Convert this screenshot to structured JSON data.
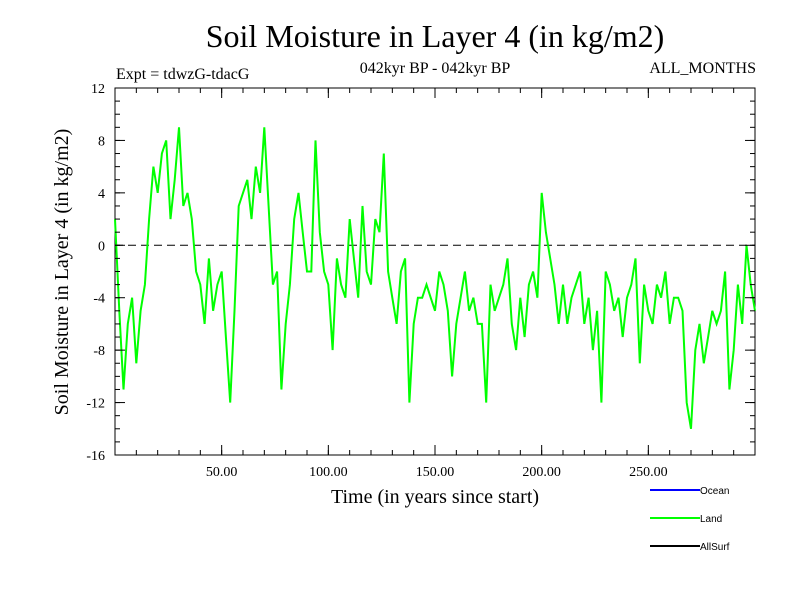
{
  "chart_data": {
    "type": "line",
    "title": "Soil Moisture in Layer 4 (in kg/m2)",
    "experiment": "Expt = tdwzG-tdacG",
    "period": "042kyr BP - 042kyr BP",
    "months": "ALL_MONTHS",
    "xlabel": "Time (in years since start)",
    "ylabel": "Soil Moisture in Layer 4 (in kg/m2)",
    "xlim": [
      0,
      300
    ],
    "ylim": [
      -16,
      12
    ],
    "x_ticks": [
      {
        "value": 50,
        "label": "50.00"
      },
      {
        "value": 100,
        "label": "100.00"
      },
      {
        "value": 150,
        "label": "150.00"
      },
      {
        "value": 200,
        "label": "200.00"
      },
      {
        "value": 250,
        "label": "250.00"
      }
    ],
    "y_ticks": [
      {
        "value": 12,
        "label": "12"
      },
      {
        "value": 8,
        "label": "8"
      },
      {
        "value": 4,
        "label": "4"
      },
      {
        "value": 0,
        "label": "0"
      },
      {
        "value": -4,
        "label": "-4"
      },
      {
        "value": -8,
        "label": "-8"
      },
      {
        "value": -12,
        "label": "-12"
      },
      {
        "value": -16,
        "label": "-16"
      }
    ],
    "zero_line": true,
    "legend": [
      {
        "name": "Ocean",
        "color": "#0000ff"
      },
      {
        "name": "Land",
        "color": "#00ff00"
      },
      {
        "name": "AllSurf",
        "color": "#000000"
      }
    ],
    "series": [
      {
        "name": "Land",
        "color": "#00ff00",
        "x": [
          0,
          2,
          4,
          6,
          8,
          10,
          12,
          14,
          16,
          18,
          20,
          22,
          24,
          26,
          28,
          30,
          32,
          34,
          36,
          38,
          40,
          42,
          44,
          46,
          48,
          50,
          52,
          54,
          56,
          58,
          60,
          62,
          64,
          66,
          68,
          70,
          72,
          74,
          76,
          78,
          80,
          82,
          84,
          86,
          88,
          90,
          92,
          94,
          96,
          98,
          100,
          102,
          104,
          106,
          108,
          110,
          112,
          114,
          116,
          118,
          120,
          122,
          124,
          126,
          128,
          130,
          132,
          134,
          136,
          138,
          140,
          142,
          144,
          146,
          148,
          150,
          152,
          154,
          156,
          158,
          160,
          162,
          164,
          166,
          168,
          170,
          172,
          174,
          176,
          178,
          180,
          182,
          184,
          186,
          188,
          190,
          192,
          194,
          196,
          198,
          200,
          202,
          204,
          206,
          208,
          210,
          212,
          214,
          216,
          218,
          220,
          222,
          224,
          226,
          228,
          230,
          232,
          234,
          236,
          238,
          240,
          242,
          244,
          246,
          248,
          250,
          252,
          254,
          256,
          258,
          260,
          262,
          264,
          266,
          268,
          270,
          272,
          274,
          276,
          278,
          280,
          282,
          284,
          286,
          288,
          290,
          292,
          294,
          296,
          298,
          300
        ],
        "values": [
          2,
          -5,
          -11,
          -6,
          -4,
          -9,
          -5,
          -3,
          2,
          6,
          4,
          7,
          8,
          2,
          5,
          9,
          3,
          4,
          2,
          -2,
          -3,
          -6,
          -1,
          -5,
          -3,
          -2,
          -7,
          -12,
          -5,
          3,
          4,
          5,
          2,
          6,
          4,
          9,
          3,
          -3,
          -2,
          -11,
          -6,
          -3,
          2,
          4,
          1,
          -2,
          -2,
          8,
          1,
          -2,
          -3,
          -8,
          -1,
          -3,
          -4,
          2,
          -1,
          -4,
          3,
          -2,
          -3,
          2,
          1,
          7,
          -2,
          -4,
          -6,
          -2,
          -1,
          -12,
          -6,
          -4,
          -4,
          -3,
          -4,
          -5,
          -2,
          -3,
          -5,
          -10,
          -6,
          -4,
          -2,
          -5,
          -4,
          -6,
          -6,
          -12,
          -3,
          -5,
          -4,
          -3,
          -1,
          -6,
          -8,
          -4,
          -7,
          -3,
          -2,
          -4,
          4,
          1,
          -1,
          -3,
          -6,
          -3,
          -6,
          -4,
          -3,
          -2,
          -6,
          -4,
          -8,
          -5,
          -12,
          -2,
          -3,
          -5,
          -4,
          -7,
          -4,
          -3,
          -1,
          -9,
          -3,
          -5,
          -6,
          -3,
          -4,
          -2,
          -6,
          -4,
          -4,
          -5,
          -12,
          -14,
          -8,
          -6,
          -9,
          -7,
          -5,
          -6,
          -5,
          -2,
          -11,
          -8,
          -3,
          -6,
          0,
          -3,
          -5
        ]
      }
    ]
  }
}
